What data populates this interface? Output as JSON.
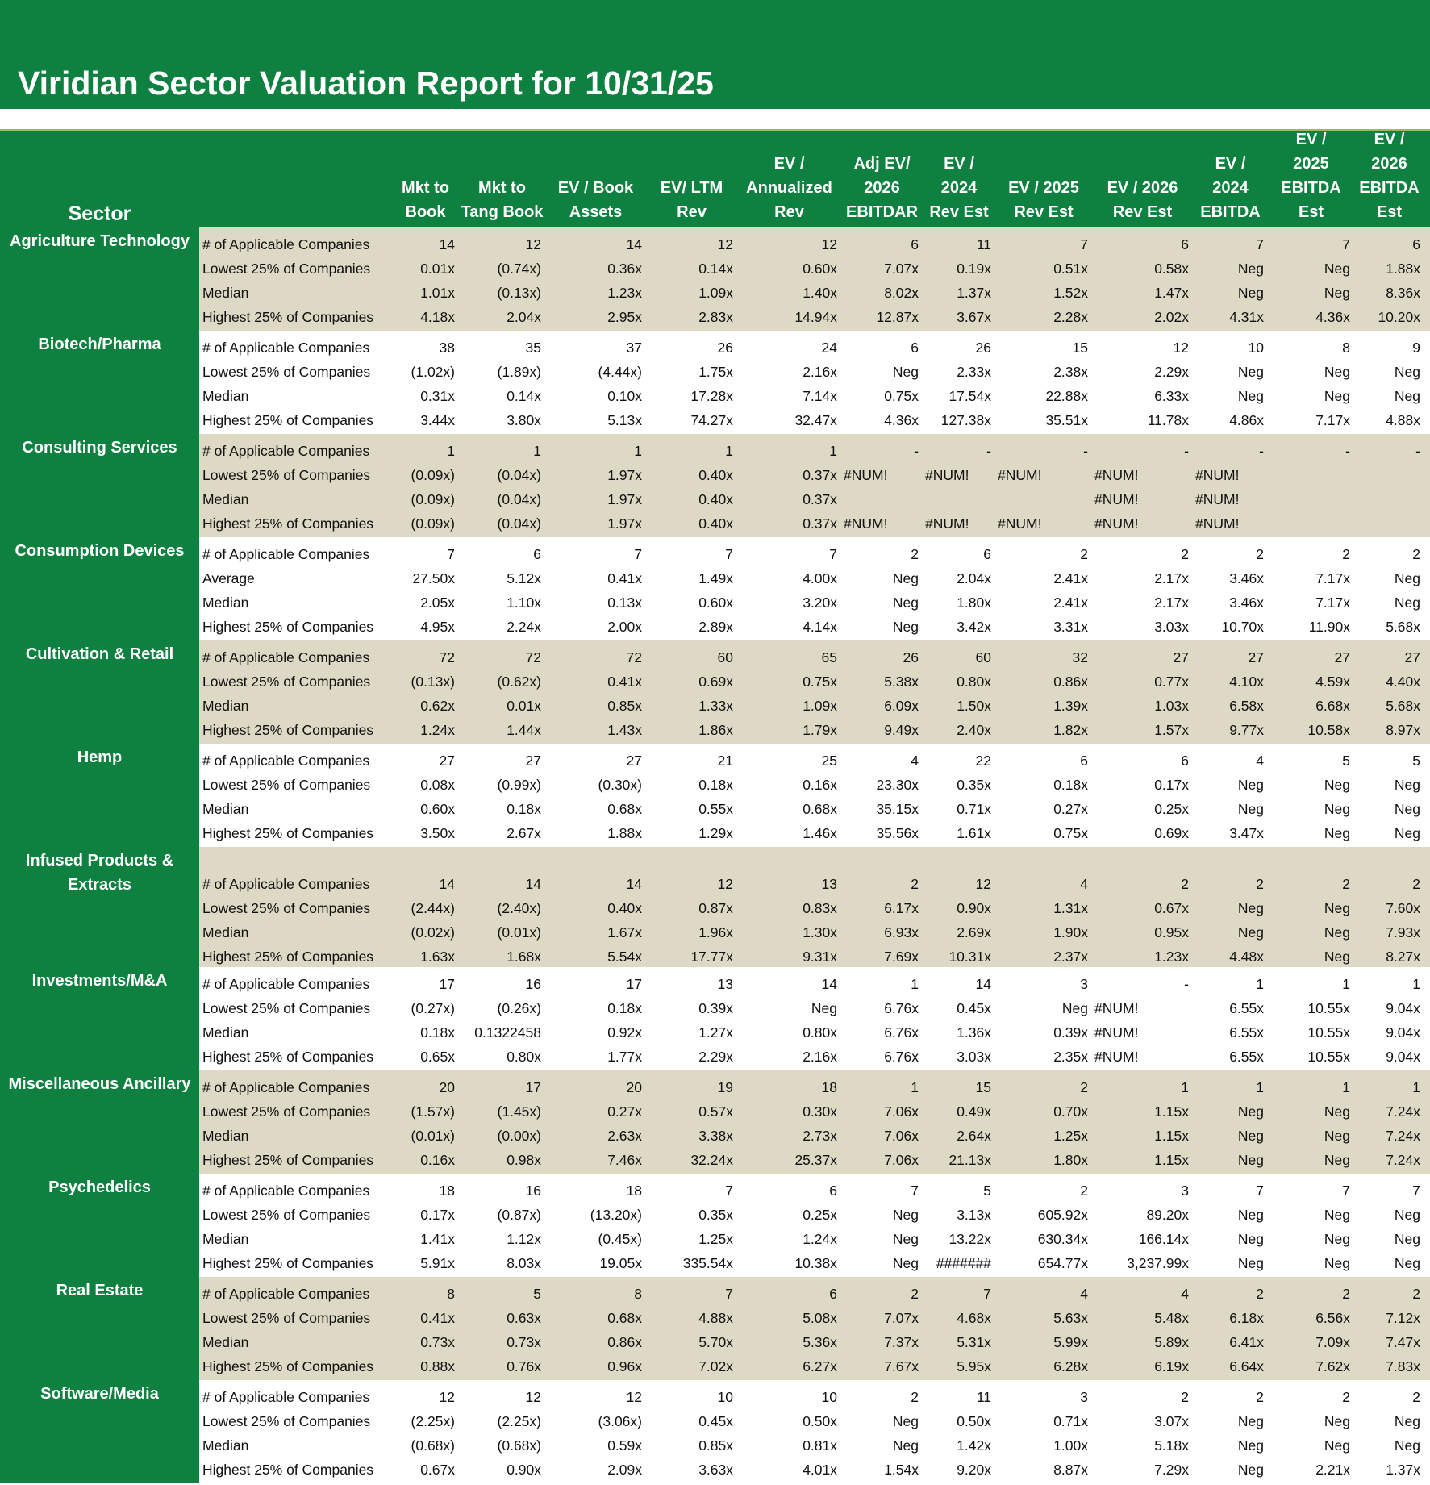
{
  "title": "Viridian Sector Valuation Report for 10/31/25",
  "header": {
    "sector": "Sector",
    "columns": [
      [
        "Mkt to",
        "Book"
      ],
      [
        "Mkt to",
        "Tang Book"
      ],
      [
        "EV / Book",
        "Assets"
      ],
      [
        "EV/ LTM",
        "Rev"
      ],
      [
        "EV /",
        "Annualized",
        "Rev"
      ],
      [
        "Adj EV/",
        "2026",
        "EBITDAR"
      ],
      [
        "EV /",
        "2024",
        "Rev Est"
      ],
      [
        "EV /  2025",
        "Rev Est"
      ],
      [
        "EV /  2026",
        "Rev Est"
      ],
      [
        "EV /",
        "2024",
        "EBITDA"
      ],
      [
        "EV /",
        "2025",
        "EBITDA",
        "Est"
      ],
      [
        "EV /",
        "2026",
        "EBITDA",
        "Est"
      ]
    ]
  },
  "colors": {
    "green": "#0e8040",
    "beige": "#ddd9c4",
    "white": "#ffffff"
  },
  "groups": [
    {
      "sector": "Agriculture Technology",
      "shade": "beige",
      "rows": [
        {
          "label": "# of Applicable Companies",
          "values": [
            "14",
            "12",
            "14",
            "12",
            "12",
            "6",
            "11",
            "7",
            "6",
            "7",
            "7",
            "6"
          ]
        },
        {
          "label": "Lowest 25% of Companies",
          "values": [
            "0.01x",
            "(0.74x)",
            "0.36x",
            "0.14x",
            "0.60x",
            "7.07x",
            "0.19x",
            "0.51x",
            "0.58x",
            "Neg",
            "Neg",
            "1.88x"
          ]
        },
        {
          "label": "Median",
          "values": [
            "1.01x",
            "(0.13x)",
            "1.23x",
            "1.09x",
            "1.40x",
            "8.02x",
            "1.37x",
            "1.52x",
            "1.47x",
            "Neg",
            "Neg",
            "8.36x"
          ]
        },
        {
          "label": "Highest 25% of Companies",
          "values": [
            "4.18x",
            "2.04x",
            "2.95x",
            "2.83x",
            "14.94x",
            "12.87x",
            "3.67x",
            "2.28x",
            "2.02x",
            "4.31x",
            "4.36x",
            "10.20x"
          ]
        }
      ]
    },
    {
      "sector": "Biotech/Pharma",
      "shade": "white",
      "rows": [
        {
          "label": "# of Applicable Companies",
          "values": [
            "38",
            "35",
            "37",
            "26",
            "24",
            "6",
            "26",
            "15",
            "12",
            "10",
            "8",
            "9"
          ]
        },
        {
          "label": "Lowest 25% of Companies",
          "values": [
            "(1.02x)",
            "(1.89x)",
            "(4.44x)",
            "1.75x",
            "2.16x",
            "Neg",
            "2.33x",
            "2.38x",
            "2.29x",
            "Neg",
            "Neg",
            "Neg"
          ]
        },
        {
          "label": "Median",
          "values": [
            "0.31x",
            "0.14x",
            "0.10x",
            "17.28x",
            "7.14x",
            "0.75x",
            "17.54x",
            "22.88x",
            "6.33x",
            "Neg",
            "Neg",
            "Neg"
          ]
        },
        {
          "label": "Highest 25% of Companies",
          "values": [
            "3.44x",
            "3.80x",
            "5.13x",
            "74.27x",
            "32.47x",
            "4.36x",
            "127.38x",
            "35.51x",
            "11.78x",
            "4.86x",
            "7.17x",
            "4.88x"
          ]
        }
      ]
    },
    {
      "sector": "Consulting Services",
      "shade": "beige",
      "rows": [
        {
          "label": "# of Applicable Companies",
          "values": [
            "1",
            "1",
            "1",
            "1",
            "1",
            "-",
            "-",
            "-",
            "-",
            "-",
            "-",
            "-"
          ]
        },
        {
          "label": "Lowest 25% of Companies",
          "values": [
            "(0.09x)",
            "(0.04x)",
            "1.97x",
            "0.40x",
            "0.37x",
            "#NUM!",
            "#NUM!",
            "#NUM!",
            "#NUM!",
            "#NUM!",
            "",
            ""
          ]
        },
        {
          "label": "Median",
          "values": [
            "(0.09x)",
            "(0.04x)",
            "1.97x",
            "0.40x",
            "0.37x",
            "",
            "",
            "",
            "#NUM!",
            "#NUM!",
            "",
            ""
          ]
        },
        {
          "label": "Highest 25% of Companies",
          "values": [
            "(0.09x)",
            "(0.04x)",
            "1.97x",
            "0.40x",
            "0.37x",
            "#NUM!",
            "#NUM!",
            "#NUM!",
            "#NUM!",
            "#NUM!",
            "",
            ""
          ]
        }
      ]
    },
    {
      "sector": "Consumption Devices",
      "shade": "white",
      "rows": [
        {
          "label": "# of Applicable Companies",
          "values": [
            "7",
            "6",
            "7",
            "7",
            "7",
            "2",
            "6",
            "2",
            "2",
            "2",
            "2",
            "2"
          ]
        },
        {
          "label": "Average",
          "values": [
            "27.50x",
            "5.12x",
            "0.41x",
            "1.49x",
            "4.00x",
            "Neg",
            "2.04x",
            "2.41x",
            "2.17x",
            "3.46x",
            "7.17x",
            "Neg"
          ]
        },
        {
          "label": "Median",
          "values": [
            "2.05x",
            "1.10x",
            "0.13x",
            "0.60x",
            "3.20x",
            "Neg",
            "1.80x",
            "2.41x",
            "2.17x",
            "3.46x",
            "7.17x",
            "Neg"
          ]
        },
        {
          "label": "Highest 25% of Companies",
          "values": [
            "4.95x",
            "2.24x",
            "2.00x",
            "2.89x",
            "4.14x",
            "Neg",
            "3.42x",
            "3.31x",
            "3.03x",
            "10.70x",
            "11.90x",
            "5.68x"
          ]
        }
      ]
    },
    {
      "sector": "Cultivation & Retail",
      "shade": "beige",
      "rows": [
        {
          "label": "# of Applicable Companies",
          "values": [
            "72",
            "72",
            "72",
            "60",
            "65",
            "26",
            "60",
            "32",
            "27",
            "27",
            "27",
            "27"
          ]
        },
        {
          "label": "Lowest 25% of Companies",
          "values": [
            "(0.13x)",
            "(0.62x)",
            "0.41x",
            "0.69x",
            "0.75x",
            "5.38x",
            "0.80x",
            "0.86x",
            "0.77x",
            "4.10x",
            "4.59x",
            "4.40x"
          ]
        },
        {
          "label": "Median",
          "values": [
            "0.62x",
            "0.01x",
            "0.85x",
            "1.33x",
            "1.09x",
            "6.09x",
            "1.50x",
            "1.39x",
            "1.03x",
            "6.58x",
            "6.68x",
            "5.68x"
          ]
        },
        {
          "label": "Highest 25% of Companies",
          "values": [
            "1.24x",
            "1.44x",
            "1.43x",
            "1.86x",
            "1.79x",
            "9.49x",
            "2.40x",
            "1.82x",
            "1.57x",
            "9.77x",
            "10.58x",
            "8.97x"
          ]
        }
      ]
    },
    {
      "sector": "Hemp",
      "shade": "white",
      "rows": [
        {
          "label": "# of Applicable Companies",
          "values": [
            "27",
            "27",
            "27",
            "21",
            "25",
            "4",
            "22",
            "6",
            "6",
            "4",
            "5",
            "5"
          ]
        },
        {
          "label": "Lowest 25% of Companies",
          "values": [
            "0.08x",
            "(0.99x)",
            "(0.30x)",
            "0.18x",
            "0.16x",
            "23.30x",
            "0.35x",
            "0.18x",
            "0.17x",
            "Neg",
            "Neg",
            "Neg"
          ]
        },
        {
          "label": "Median",
          "values": [
            "0.60x",
            "0.18x",
            "0.68x",
            "0.55x",
            "0.68x",
            "35.15x",
            "0.71x",
            "0.27x",
            "0.25x",
            "Neg",
            "Neg",
            "Neg"
          ]
        },
        {
          "label": "Highest 25% of Companies",
          "values": [
            "3.50x",
            "2.67x",
            "1.88x",
            "1.29x",
            "1.46x",
            "35.56x",
            "1.61x",
            "0.75x",
            "0.69x",
            "3.47x",
            "Neg",
            "Neg"
          ]
        }
      ]
    },
    {
      "sector": "Infused Products & Extracts",
      "shade": "beige",
      "tall": true,
      "rows": [
        {
          "label": "# of Applicable Companies",
          "values": [
            "14",
            "14",
            "14",
            "12",
            "13",
            "2",
            "12",
            "4",
            "2",
            "2",
            "2",
            "2"
          ]
        },
        {
          "label": "Lowest 25% of Companies",
          "values": [
            "(2.44x)",
            "(2.40x)",
            "0.40x",
            "0.87x",
            "0.83x",
            "6.17x",
            "0.90x",
            "1.31x",
            "0.67x",
            "Neg",
            "Neg",
            "7.60x"
          ]
        },
        {
          "label": "Median",
          "values": [
            "(0.02x)",
            "(0.01x)",
            "1.67x",
            "1.96x",
            "1.30x",
            "6.93x",
            "2.69x",
            "1.90x",
            "0.95x",
            "Neg",
            "Neg",
            "7.93x"
          ]
        },
        {
          "label": "Highest 25% of Companies",
          "values": [
            "1.63x",
            "1.68x",
            "5.54x",
            "17.77x",
            "9.31x",
            "7.69x",
            "10.31x",
            "2.37x",
            "1.23x",
            "4.48x",
            "Neg",
            "8.27x"
          ]
        }
      ]
    },
    {
      "sector": "Investments/M&A",
      "shade": "white",
      "rows": [
        {
          "label": "# of Applicable Companies",
          "values": [
            "17",
            "16",
            "17",
            "13",
            "14",
            "1",
            "14",
            "3",
            "-",
            "1",
            "1",
            "1"
          ]
        },
        {
          "label": "Lowest 25% of Companies",
          "values": [
            "(0.27x)",
            "(0.26x)",
            "0.18x",
            "0.39x",
            "Neg",
            "6.76x",
            "0.45x",
            "Neg",
            "#NUM!",
            "6.55x",
            "10.55x",
            "9.04x"
          ]
        },
        {
          "label": "Median",
          "values": [
            "0.18x",
            "0.1322458",
            "0.92x",
            "1.27x",
            "0.80x",
            "6.76x",
            "1.36x",
            "0.39x",
            "#NUM!",
            "6.55x",
            "10.55x",
            "9.04x"
          ]
        },
        {
          "label": "Highest 25% of Companies",
          "values": [
            "0.65x",
            "0.80x",
            "1.77x",
            "2.29x",
            "2.16x",
            "6.76x",
            "3.03x",
            "2.35x",
            "#NUM!",
            "6.55x",
            "10.55x",
            "9.04x"
          ]
        }
      ]
    },
    {
      "sector": "Miscellaneous Ancillary",
      "shade": "beige",
      "rows": [
        {
          "label": "# of Applicable Companies",
          "values": [
            "20",
            "17",
            "20",
            "19",
            "18",
            "1",
            "15",
            "2",
            "1",
            "1",
            "1",
            "1"
          ]
        },
        {
          "label": "Lowest 25% of Companies",
          "values": [
            "(1.57x)",
            "(1.45x)",
            "0.27x",
            "0.57x",
            "0.30x",
            "7.06x",
            "0.49x",
            "0.70x",
            "1.15x",
            "Neg",
            "Neg",
            "7.24x"
          ]
        },
        {
          "label": "Median",
          "values": [
            "(0.01x)",
            "(0.00x)",
            "2.63x",
            "3.38x",
            "2.73x",
            "7.06x",
            "2.64x",
            "1.25x",
            "1.15x",
            "Neg",
            "Neg",
            "7.24x"
          ]
        },
        {
          "label": "Highest 25% of Companies",
          "values": [
            "0.16x",
            "0.98x",
            "7.46x",
            "32.24x",
            "25.37x",
            "7.06x",
            "21.13x",
            "1.80x",
            "1.15x",
            "Neg",
            "Neg",
            "7.24x"
          ]
        }
      ]
    },
    {
      "sector": "Psychedelics",
      "shade": "white",
      "rows": [
        {
          "label": "# of Applicable Companies",
          "values": [
            "18",
            "16",
            "18",
            "7",
            "6",
            "7",
            "5",
            "2",
            "3",
            "7",
            "7",
            "7"
          ]
        },
        {
          "label": "Lowest 25% of Companies",
          "values": [
            "0.17x",
            "(0.87x)",
            "(13.20x)",
            "0.35x",
            "0.25x",
            "Neg",
            "3.13x",
            "605.92x",
            "89.20x",
            "Neg",
            "Neg",
            "Neg"
          ]
        },
        {
          "label": "Median",
          "values": [
            "1.41x",
            "1.12x",
            "(0.45x)",
            "1.25x",
            "1.24x",
            "Neg",
            "13.22x",
            "630.34x",
            "166.14x",
            "Neg",
            "Neg",
            "Neg"
          ]
        },
        {
          "label": "Highest 25% of Companies",
          "values": [
            "5.91x",
            "8.03x",
            "19.05x",
            "335.54x",
            "10.38x",
            "Neg",
            "#######",
            "654.77x",
            "3,237.99x",
            "Neg",
            "Neg",
            "Neg"
          ]
        }
      ]
    },
    {
      "sector": "Real Estate",
      "shade": "beige",
      "rows": [
        {
          "label": "# of Applicable Companies",
          "values": [
            "8",
            "5",
            "8",
            "7",
            "6",
            "2",
            "7",
            "4",
            "4",
            "2",
            "2",
            "2"
          ]
        },
        {
          "label": "Lowest 25% of Companies",
          "values": [
            "0.41x",
            "0.63x",
            "0.68x",
            "4.88x",
            "5.08x",
            "7.07x",
            "4.68x",
            "5.63x",
            "5.48x",
            "6.18x",
            "6.56x",
            "7.12x"
          ]
        },
        {
          "label": "Median",
          "values": [
            "0.73x",
            "0.73x",
            "0.86x",
            "5.70x",
            "5.36x",
            "7.37x",
            "5.31x",
            "5.99x",
            "5.89x",
            "6.41x",
            "7.09x",
            "7.47x"
          ]
        },
        {
          "label": "Highest 25% of Companies",
          "values": [
            "0.88x",
            "0.76x",
            "0.96x",
            "7.02x",
            "6.27x",
            "7.67x",
            "5.95x",
            "6.28x",
            "6.19x",
            "6.64x",
            "7.62x",
            "7.83x"
          ]
        }
      ]
    },
    {
      "sector": "Software/Media",
      "shade": "white",
      "rows": [
        {
          "label": "# of Applicable Companies",
          "values": [
            "12",
            "12",
            "12",
            "10",
            "10",
            "2",
            "11",
            "3",
            "2",
            "2",
            "2",
            "2"
          ]
        },
        {
          "label": "Lowest 25% of Companies",
          "values": [
            "(2.25x)",
            "(2.25x)",
            "(3.06x)",
            "0.45x",
            "0.50x",
            "Neg",
            "0.50x",
            "0.71x",
            "3.07x",
            "Neg",
            "Neg",
            "Neg"
          ]
        },
        {
          "label": "Median",
          "values": [
            "(0.68x)",
            "(0.68x)",
            "0.59x",
            "0.85x",
            "0.81x",
            "Neg",
            "1.42x",
            "1.00x",
            "5.18x",
            "Neg",
            "Neg",
            "Neg"
          ]
        },
        {
          "label": "Highest 25% of Companies",
          "values": [
            "0.67x",
            "0.90x",
            "2.09x",
            "3.63x",
            "4.01x",
            "1.54x",
            "9.20x",
            "8.87x",
            "7.29x",
            "Neg",
            "2.21x",
            "1.37x"
          ]
        }
      ]
    }
  ]
}
